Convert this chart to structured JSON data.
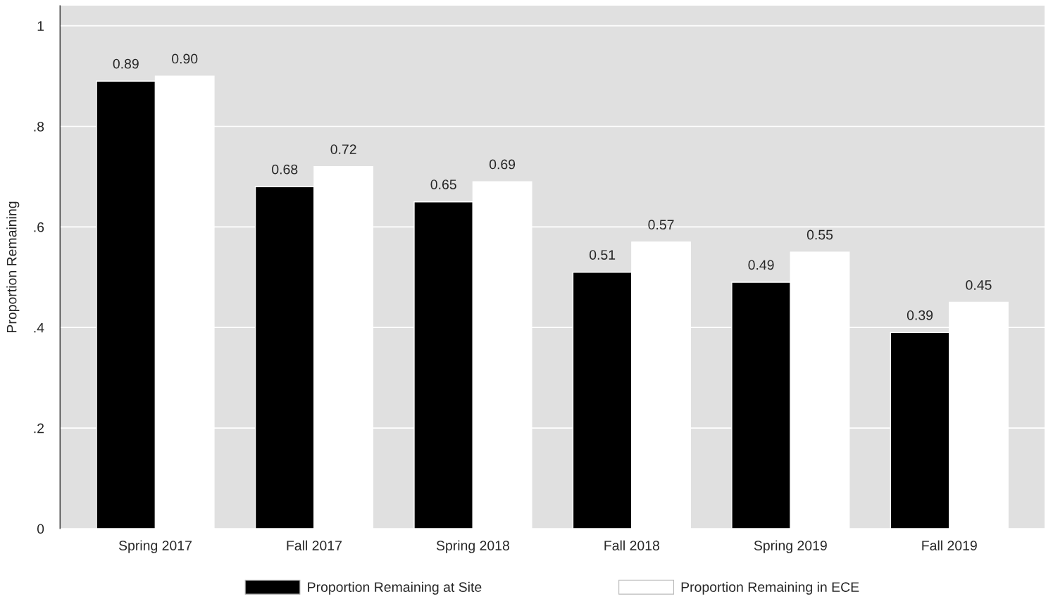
{
  "chart_data": {
    "type": "bar",
    "ylabel": "Proportion Remaining",
    "categories": [
      "Spring 2017",
      "Fall 2017",
      "Spring 2018",
      "Fall 2018",
      "Spring 2019",
      "Fall 2019"
    ],
    "series": [
      {
        "name": "Proportion Remaining at Site",
        "color": "#000000",
        "values": [
          0.89,
          0.68,
          0.65,
          0.51,
          0.49,
          0.39
        ],
        "value_labels": [
          "0.89",
          "0.68",
          "0.65",
          "0.51",
          "0.49",
          "0.39"
        ]
      },
      {
        "name": "Proportion Remaining in ECE",
        "color": "#ffffff",
        "values": [
          0.9,
          0.72,
          0.69,
          0.57,
          0.55,
          0.45
        ],
        "value_labels": [
          "0.90",
          "0.72",
          "0.69",
          "0.57",
          "0.55",
          "0.45"
        ]
      }
    ],
    "ylim": [
      0,
      1.04
    ],
    "yticks": [
      0,
      {
        "value": 0.2,
        "label": ".2"
      },
      {
        "value": 0.4,
        "label": ".4"
      },
      {
        "value": 0.6,
        "label": ".6"
      },
      {
        "value": 0.8,
        "label": ".8"
      },
      1
    ],
    "grid": "y",
    "legend": "bottom"
  }
}
